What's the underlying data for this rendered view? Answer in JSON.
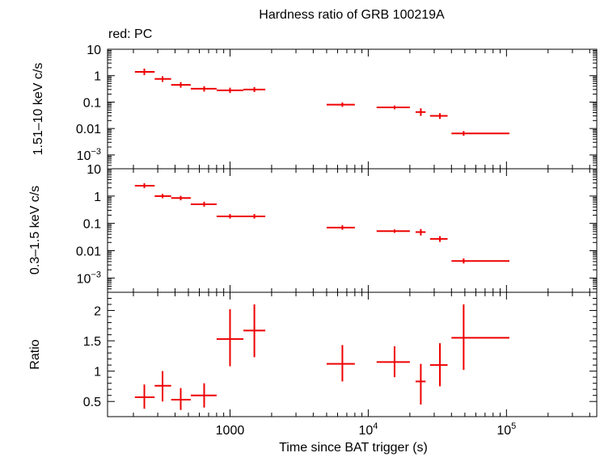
{
  "chart_data": {
    "type": "scatter",
    "title": "Hardness ratio of GRB 100219A",
    "subtitle": "red: PC",
    "xlabel": "Time since BAT trigger (s)",
    "xscale": "log",
    "xlim": [
      130,
      450000
    ],
    "x_ticks": [
      {
        "value": 1000,
        "label": "1000",
        "sup": ""
      },
      {
        "value": 10000,
        "label": "10",
        "sup": "4"
      },
      {
        "value": 100000,
        "label": "10",
        "sup": "5"
      }
    ],
    "color": "#ee0000",
    "panels": [
      {
        "id": "hard",
        "ylabel": "1.51–10 keV c/s",
        "yscale": "log",
        "ylim": [
          0.0003,
          10
        ],
        "y_ticks": [
          {
            "value": 10,
            "label": "10",
            "sup": ""
          },
          {
            "value": 1,
            "label": "1",
            "sup": ""
          },
          {
            "value": 0.1,
            "label": "0.1",
            "sup": ""
          },
          {
            "value": 0.01,
            "label": "0.01",
            "sup": ""
          },
          {
            "value": 0.001,
            "label": "10",
            "sup": "−3"
          }
        ],
        "points": [
          {
            "x": 240,
            "xlo": 205,
            "xhi": 285,
            "y": 1.4,
            "ylo": 1.05,
            "yhi": 1.85
          },
          {
            "x": 325,
            "xlo": 285,
            "xhi": 375,
            "y": 0.75,
            "ylo": 0.58,
            "yhi": 0.95
          },
          {
            "x": 440,
            "xlo": 375,
            "xhi": 520,
            "y": 0.45,
            "ylo": 0.35,
            "yhi": 0.57
          },
          {
            "x": 650,
            "xlo": 520,
            "xhi": 800,
            "y": 0.32,
            "ylo": 0.25,
            "yhi": 0.4
          },
          {
            "x": 1000,
            "xlo": 800,
            "xhi": 1250,
            "y": 0.28,
            "ylo": 0.22,
            "yhi": 0.35
          },
          {
            "x": 1500,
            "xlo": 1250,
            "xhi": 1800,
            "y": 0.3,
            "ylo": 0.24,
            "yhi": 0.37
          },
          {
            "x": 6500,
            "xlo": 5000,
            "xhi": 8000,
            "y": 0.08,
            "ylo": 0.066,
            "yhi": 0.097
          },
          {
            "x": 15500,
            "xlo": 11500,
            "xhi": 20000,
            "y": 0.063,
            "ylo": 0.053,
            "yhi": 0.074
          },
          {
            "x": 24000,
            "xlo": 22000,
            "xhi": 26000,
            "y": 0.042,
            "ylo": 0.03,
            "yhi": 0.058
          },
          {
            "x": 33000,
            "xlo": 28000,
            "xhi": 37500,
            "y": 0.03,
            "ylo": 0.023,
            "yhi": 0.038
          },
          {
            "x": 49000,
            "xlo": 40000,
            "xhi": 105000,
            "y": 0.0065,
            "ylo": 0.0053,
            "yhi": 0.008
          }
        ]
      },
      {
        "id": "soft",
        "ylabel": "0.3–1.5 keV c/s",
        "yscale": "log",
        "ylim": [
          0.0003,
          10
        ],
        "y_ticks": [
          {
            "value": 10,
            "label": "10",
            "sup": ""
          },
          {
            "value": 1,
            "label": "1",
            "sup": ""
          },
          {
            "value": 0.1,
            "label": "0.1",
            "sup": ""
          },
          {
            "value": 0.01,
            "label": "0.01",
            "sup": ""
          },
          {
            "value": 0.001,
            "label": "10",
            "sup": "−3"
          }
        ],
        "points": [
          {
            "x": 240,
            "xlo": 205,
            "xhi": 285,
            "y": 2.4,
            "ylo": 1.95,
            "yhi": 2.95
          },
          {
            "x": 325,
            "xlo": 285,
            "xhi": 375,
            "y": 1.0,
            "ylo": 0.83,
            "yhi": 1.2
          },
          {
            "x": 440,
            "xlo": 375,
            "xhi": 520,
            "y": 0.85,
            "ylo": 0.7,
            "yhi": 1.02
          },
          {
            "x": 650,
            "xlo": 520,
            "xhi": 800,
            "y": 0.5,
            "ylo": 0.41,
            "yhi": 0.62
          },
          {
            "x": 1000,
            "xlo": 800,
            "xhi": 1250,
            "y": 0.18,
            "ylo": 0.15,
            "yhi": 0.22
          },
          {
            "x": 1500,
            "xlo": 1250,
            "xhi": 1800,
            "y": 0.18,
            "ylo": 0.15,
            "yhi": 0.22
          },
          {
            "x": 6500,
            "xlo": 5000,
            "xhi": 8000,
            "y": 0.07,
            "ylo": 0.058,
            "yhi": 0.085
          },
          {
            "x": 15500,
            "xlo": 11500,
            "xhi": 20000,
            "y": 0.052,
            "ylo": 0.045,
            "yhi": 0.06
          },
          {
            "x": 24000,
            "xlo": 22000,
            "xhi": 26000,
            "y": 0.048,
            "ylo": 0.036,
            "yhi": 0.062
          },
          {
            "x": 33000,
            "xlo": 28000,
            "xhi": 37500,
            "y": 0.027,
            "ylo": 0.021,
            "yhi": 0.034
          },
          {
            "x": 49000,
            "xlo": 40000,
            "xhi": 105000,
            "y": 0.0042,
            "ylo": 0.0034,
            "yhi": 0.0052
          }
        ]
      },
      {
        "id": "ratio",
        "ylabel": "Ratio",
        "yscale": "linear",
        "ylim": [
          0.25,
          2.3
        ],
        "y_ticks": [
          {
            "value": 2,
            "label": "2",
            "sup": ""
          },
          {
            "value": 1.5,
            "label": "1.5",
            "sup": ""
          },
          {
            "value": 1,
            "label": "1",
            "sup": ""
          },
          {
            "value": 0.5,
            "label": "0.5",
            "sup": ""
          }
        ],
        "points": [
          {
            "x": 240,
            "xlo": 205,
            "xhi": 285,
            "y": 0.57,
            "ylo": 0.38,
            "yhi": 0.78
          },
          {
            "x": 325,
            "xlo": 285,
            "xhi": 375,
            "y": 0.76,
            "ylo": 0.5,
            "yhi": 1.0
          },
          {
            "x": 440,
            "xlo": 375,
            "xhi": 520,
            "y": 0.53,
            "ylo": 0.36,
            "yhi": 0.72
          },
          {
            "x": 650,
            "xlo": 520,
            "xhi": 800,
            "y": 0.6,
            "ylo": 0.4,
            "yhi": 0.8
          },
          {
            "x": 1000,
            "xlo": 800,
            "xhi": 1250,
            "y": 1.53,
            "ylo": 1.08,
            "yhi": 2.02
          },
          {
            "x": 1500,
            "xlo": 1250,
            "xhi": 1800,
            "y": 1.67,
            "ylo": 1.23,
            "yhi": 2.1
          },
          {
            "x": 6500,
            "xlo": 5000,
            "xhi": 8000,
            "y": 1.12,
            "ylo": 0.83,
            "yhi": 1.43
          },
          {
            "x": 15500,
            "xlo": 11500,
            "xhi": 20000,
            "y": 1.15,
            "ylo": 0.9,
            "yhi": 1.41
          },
          {
            "x": 24000,
            "xlo": 22000,
            "xhi": 26000,
            "y": 0.83,
            "ylo": 0.45,
            "yhi": 1.12
          },
          {
            "x": 33000,
            "xlo": 28000,
            "xhi": 37500,
            "y": 1.1,
            "ylo": 0.75,
            "yhi": 1.46
          },
          {
            "x": 49000,
            "xlo": 40000,
            "xhi": 105000,
            "y": 1.55,
            "ylo": 1.02,
            "yhi": 2.1
          }
        ]
      }
    ]
  }
}
